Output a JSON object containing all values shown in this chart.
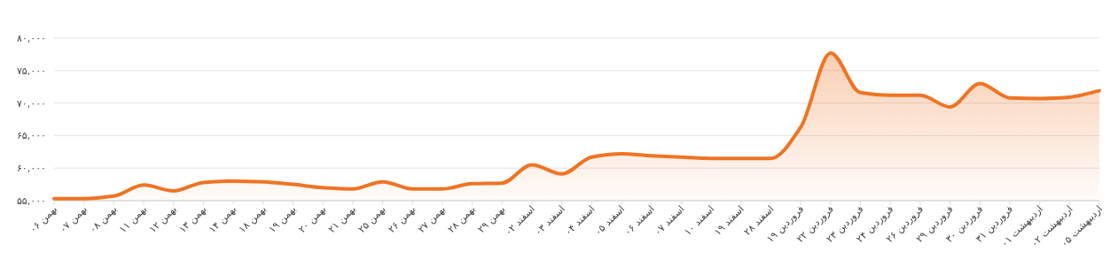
{
  "chart_data": {
    "type": "area",
    "categories": [
      "بهمن ۰۶",
      "بهمن ۰۷",
      "بهمن ۰۸",
      "بهمن ۱۱",
      "بهمن ۱۲",
      "بهمن ۱۳",
      "بهمن ۱۴",
      "بهمن ۱۸",
      "بهمن ۱۹",
      "بهمن ۲۰",
      "بهمن ۲۱",
      "بهمن ۲۵",
      "بهمن ۲۶",
      "بهمن ۲۷",
      "بهمن ۲۸",
      "بهمن ۲۹",
      "اسفند ۰۲",
      "اسفند ۰۳",
      "اسفند ۰۴",
      "اسفند ۰۵",
      "اسفند ۰۶",
      "اسفند ۰۷",
      "اسفند ۱۰",
      "اسفند ۱۹",
      "اسفند ۲۸",
      "فروردین ۱۹",
      "فروردین ۲۲",
      "فروردین ۲۳",
      "فروردین ۲۴",
      "فروردین ۲۶",
      "فروردین ۲۹",
      "فروردین ۳۰",
      "فروردین ۳۱",
      "اردیبهشت ۰۱",
      "اردیبهشت ۰۲",
      "اردیبهشت ۰۵"
    ],
    "series": [
      {
        "color": "#ef7424",
        "values": [
          55300,
          55300,
          55700,
          57400,
          56500,
          57800,
          58000,
          57900,
          57500,
          57000,
          56800,
          57900,
          56800,
          56800,
          57600,
          57700,
          60500,
          59100,
          61700,
          62200,
          61900,
          61700,
          61500,
          61500,
          61500,
          66300,
          77700,
          71600,
          71200,
          71200,
          69400,
          73000,
          70800,
          70700,
          70900,
          71900
        ]
      }
    ],
    "ylim": [
      55000,
      80000
    ],
    "yticks": [
      {
        "value": 55000,
        "label": "۵۵,۰۰۰"
      },
      {
        "value": 60000,
        "label": "۶۰,۰۰۰"
      },
      {
        "value": 65000,
        "label": "۶۵,۰۰۰"
      },
      {
        "value": 70000,
        "label": "۷۰,۰۰۰"
      },
      {
        "value": 75000,
        "label": "۷۵,۰۰۰"
      },
      {
        "value": 80000,
        "label": "۸۰,۰۰۰"
      }
    ],
    "grid": "y"
  }
}
